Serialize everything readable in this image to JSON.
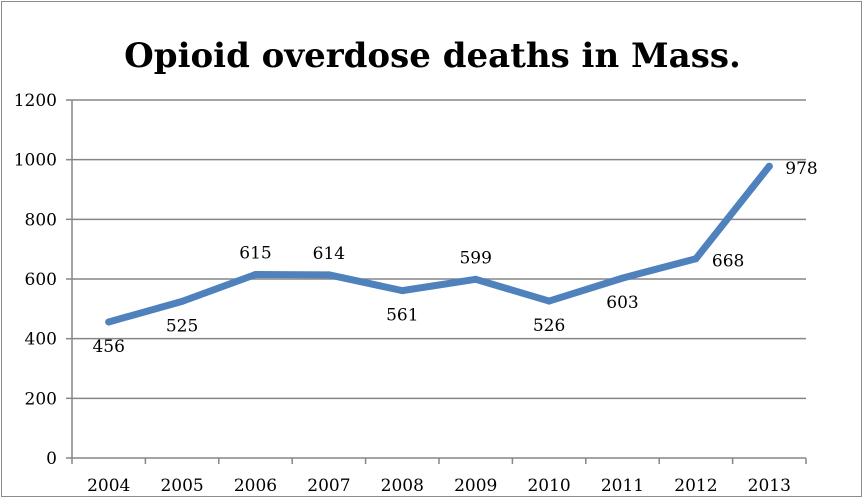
{
  "chart_data": {
    "type": "line",
    "title": "Opioid overdose deaths in Mass.",
    "xlabel": "",
    "ylabel": "",
    "categories": [
      "2004",
      "2005",
      "2006",
      "2007",
      "2008",
      "2009",
      "2010",
      "2011",
      "2012",
      "2013"
    ],
    "series": [
      {
        "values": [
          456,
          525,
          615,
          614,
          561,
          599,
          526,
          603,
          668,
          978
        ]
      }
    ],
    "data_labels": [
      "456",
      "525",
      "615",
      "614",
      "561",
      "599",
      "526",
      "603",
      "668",
      "978"
    ],
    "ylim": [
      0,
      1200
    ],
    "yticks": [
      0,
      200,
      400,
      600,
      800,
      1000,
      1200
    ],
    "grid": true,
    "legend": "none",
    "colors": {
      "line": "#4f81bd",
      "grid": "#868686"
    }
  }
}
